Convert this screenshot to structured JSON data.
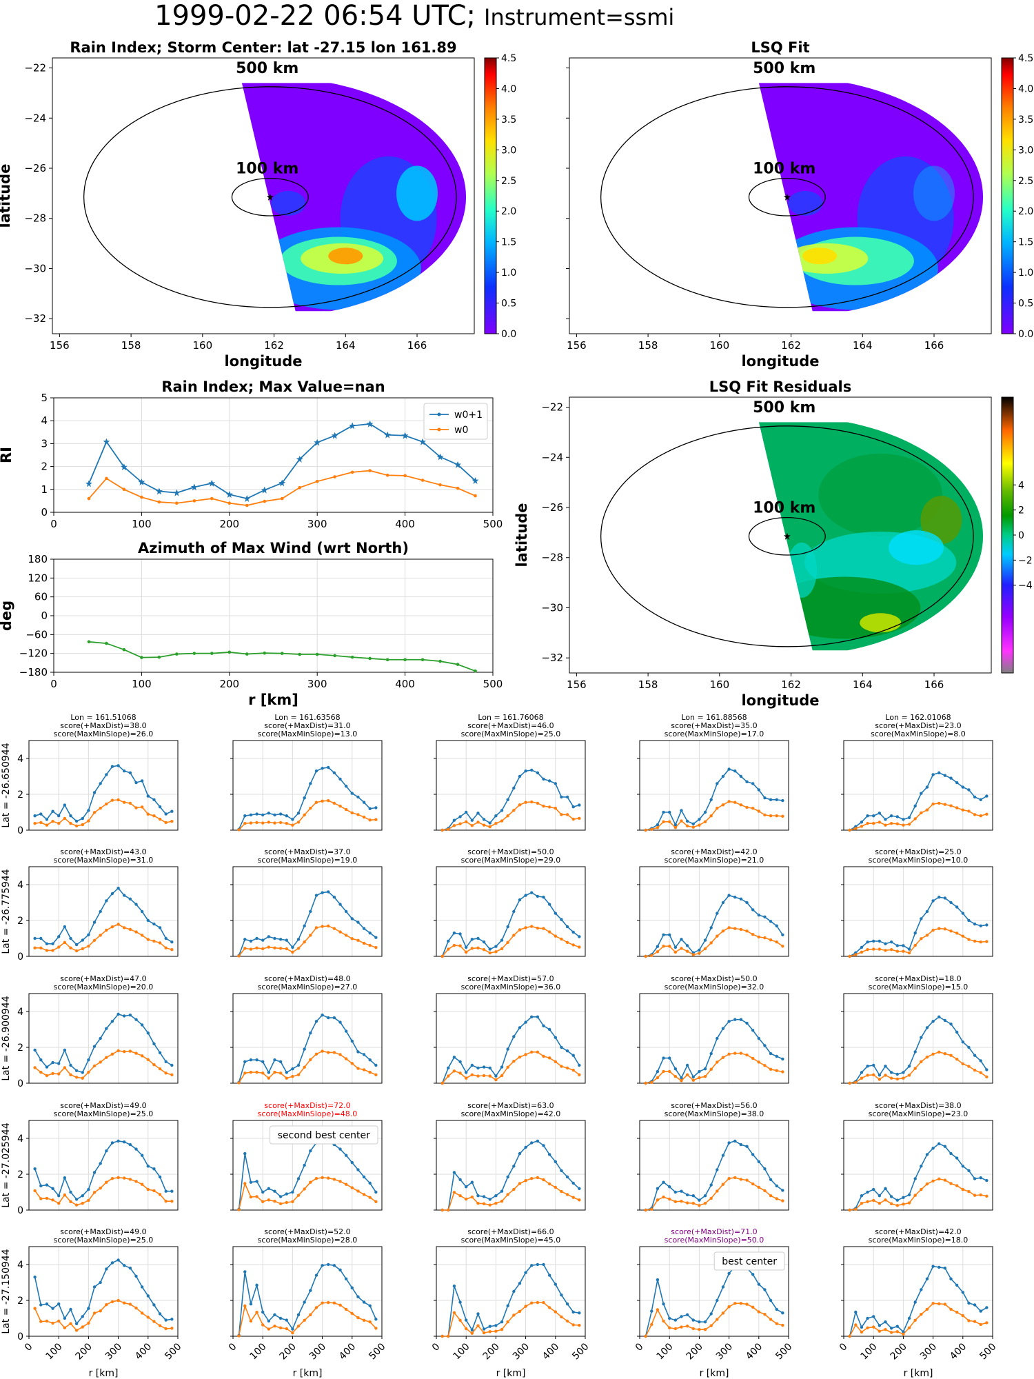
{
  "suptitle": "1999-02-22 06:54 UTC;",
  "suptitle_instrument": "Instrument=ssmi",
  "chart_data": {
    "maps": [
      {
        "id": "rain_index_map",
        "title": "Rain Index; Storm Center: lat -27.15 lon 161.89",
        "xlabel": "longitude",
        "ylabel": "latitude",
        "x_ticks": [
          "156",
          "158",
          "160",
          "162",
          "164",
          "166"
        ],
        "y_ticks": [
          "−22",
          "−24",
          "−26",
          "−28",
          "−30",
          "−32"
        ],
        "colorbar_ticks": [
          "0.0",
          "0.5",
          "1.0",
          "1.5",
          "2.0",
          "2.5",
          "3.0",
          "3.5",
          "4.0",
          "4.5"
        ],
        "ring_labels": [
          "500 km",
          "100 km"
        ],
        "storm_center": {
          "lat": -27.15,
          "lon": 161.89
        }
      },
      {
        "id": "lsq_fit_map",
        "title": "LSQ Fit",
        "xlabel": "longitude",
        "ylabel": "",
        "x_ticks": [
          "156",
          "158",
          "160",
          "162",
          "164",
          "166"
        ],
        "y_ticks": [],
        "colorbar_ticks": [
          "0.0",
          "0.5",
          "1.0",
          "1.5",
          "2.0",
          "2.5",
          "3.0",
          "3.5",
          "4.0",
          "4.5"
        ],
        "ring_labels": [
          "500 km",
          "100 km"
        ]
      },
      {
        "id": "residual_map",
        "title": "LSQ Fit Residuals",
        "xlabel": "longitude",
        "ylabel": "latitude",
        "x_ticks": [
          "156",
          "158",
          "160",
          "162",
          "164",
          "166"
        ],
        "y_ticks": [
          "−22",
          "−24",
          "−26",
          "−28",
          "−30",
          "−32"
        ],
        "colorbar_ticks": [
          "4",
          "2",
          "0",
          "−2",
          "−4"
        ],
        "ring_labels": [
          "500 km",
          "100 km"
        ]
      }
    ],
    "rain_index_profile": {
      "type": "line",
      "title": "Rain Index; Max Value=nan",
      "ylabel": "RI",
      "xlabel": "",
      "x_ticks": [
        "0",
        "100",
        "200",
        "300",
        "400",
        "500"
      ],
      "y_ticks": [
        "0",
        "1",
        "2",
        "3",
        "4",
        "5"
      ],
      "xlim": [
        0,
        500
      ],
      "ylim": [
        0,
        5
      ],
      "legend_position": "top-right",
      "x": [
        40,
        60,
        80,
        100,
        120,
        140,
        160,
        180,
        200,
        220,
        240,
        260,
        280,
        300,
        320,
        340,
        360,
        380,
        400,
        420,
        440,
        460,
        480
      ],
      "series": [
        {
          "name": "w0+1",
          "color": "#1f77b4",
          "values": [
            1.25,
            3.08,
            1.98,
            1.32,
            0.92,
            0.85,
            1.1,
            1.27,
            0.78,
            0.6,
            0.97,
            1.28,
            2.32,
            3.05,
            3.35,
            3.78,
            3.86,
            3.38,
            3.35,
            3.08,
            2.42,
            2.08,
            1.38
          ]
        },
        {
          "name": "w0",
          "color": "#ff7f0e",
          "values": [
            0.6,
            1.48,
            1.0,
            0.66,
            0.45,
            0.4,
            0.5,
            0.6,
            0.4,
            0.3,
            0.48,
            0.6,
            1.08,
            1.35,
            1.55,
            1.75,
            1.82,
            1.62,
            1.6,
            1.4,
            1.2,
            1.05,
            0.72
          ]
        }
      ]
    },
    "azimuth_profile": {
      "type": "line",
      "title": "Azimuth of Max Wind (wrt North)",
      "ylabel": "deg",
      "xlabel": "r [km]",
      "x_ticks": [
        "0",
        "100",
        "200",
        "300",
        "400",
        "500"
      ],
      "y_ticks": [
        "180",
        "120",
        "60",
        "0",
        "−60",
        "−120",
        "−180"
      ],
      "xlim": [
        0,
        500
      ],
      "ylim": [
        -180,
        180
      ],
      "x": [
        40,
        60,
        80,
        100,
        120,
        140,
        160,
        180,
        200,
        220,
        240,
        260,
        280,
        300,
        320,
        340,
        360,
        380,
        400,
        420,
        440,
        460,
        480
      ],
      "series": [
        {
          "name": "",
          "color": "#2ca02c",
          "values": [
            -83,
            -88,
            -108,
            -133,
            -132,
            -122,
            -120,
            -120,
            -116,
            -122,
            -119,
            -120,
            -123,
            -123,
            -127,
            -132,
            -136,
            -140,
            -140,
            -140,
            -145,
            -155,
            -176
          ]
        }
      ]
    },
    "grid_rows": [
      {
        "label": "Lat = -26.650944",
        "cells": [
          {
            "lines": [
              "Lon = 161.51068",
              "score(+MaxDist)=38.0",
              "score(MaxMinSlope)=26.0"
            ]
          },
          {
            "lines": [
              "Lon = 161.63568",
              "score(+MaxDist)=31.0",
              "score(MaxMinSlope)=13.0"
            ]
          },
          {
            "lines": [
              "Lon = 161.76068",
              "score(+MaxDist)=46.0",
              "score(MaxMinSlope)=25.0"
            ]
          },
          {
            "lines": [
              "Lon = 161.88568",
              "score(+MaxDist)=35.0",
              "score(MaxMinSlope)=17.0"
            ]
          },
          {
            "lines": [
              "Lon = 162.01068",
              "score(+MaxDist)=23.0",
              "score(MaxMinSlope)=8.0"
            ]
          }
        ]
      },
      {
        "label": "Lat = -26.775944",
        "cells": [
          {
            "lines": [
              "score(+MaxDist)=43.0",
              "score(MaxMinSlope)=31.0"
            ]
          },
          {
            "lines": [
              "score(+MaxDist)=37.0",
              "score(MaxMinSlope)=19.0"
            ]
          },
          {
            "lines": [
              "score(+MaxDist)=50.0",
              "score(MaxMinSlope)=29.0"
            ]
          },
          {
            "lines": [
              "score(+MaxDist)=42.0",
              "score(MaxMinSlope)=21.0"
            ]
          },
          {
            "lines": [
              "score(+MaxDist)=25.0",
              "score(MaxMinSlope)=10.0"
            ]
          }
        ]
      },
      {
        "label": "Lat = -26.900944",
        "cells": [
          {
            "lines": [
              "score(+MaxDist)=47.0",
              "score(MaxMinSlope)=20.0"
            ]
          },
          {
            "lines": [
              "score(+MaxDist)=48.0",
              "score(MaxMinSlope)=27.0"
            ]
          },
          {
            "lines": [
              "score(+MaxDist)=57.0",
              "score(MaxMinSlope)=36.0"
            ]
          },
          {
            "lines": [
              "score(+MaxDist)=50.0",
              "score(MaxMinSlope)=32.0"
            ]
          },
          {
            "lines": [
              "score(+MaxDist)=18.0",
              "score(MaxMinSlope)=15.0"
            ]
          }
        ]
      },
      {
        "label": "Lat = -27.025944",
        "cells": [
          {
            "lines": [
              "score(+MaxDist)=49.0",
              "score(MaxMinSlope)=25.0"
            ]
          },
          {
            "lines": [
              "score(+MaxDist)=72.0",
              "score(MaxMinSlope)=48.0"
            ],
            "title_color": "#ff0000",
            "annotation": "second best center"
          },
          {
            "lines": [
              "score(+MaxDist)=63.0",
              "score(MaxMinSlope)=42.0"
            ]
          },
          {
            "lines": [
              "score(+MaxDist)=56.0",
              "score(MaxMinSlope)=38.0"
            ]
          },
          {
            "lines": [
              "score(+MaxDist)=38.0",
              "score(MaxMinSlope)=23.0"
            ]
          }
        ]
      },
      {
        "label": "Lat = -27.150944",
        "cells": [
          {
            "lines": [
              "score(+MaxDist)=49.0",
              "score(MaxMinSlope)=25.0"
            ]
          },
          {
            "lines": [
              "score(+MaxDist)=52.0",
              "score(MaxMinSlope)=28.0"
            ]
          },
          {
            "lines": [
              "score(+MaxDist)=66.0",
              "score(MaxMinSlope)=45.0"
            ]
          },
          {
            "lines": [
              "score(+MaxDist)=71.0",
              "score(MaxMinSlope)=50.0"
            ],
            "title_color": "#800080",
            "annotation": "best center"
          },
          {
            "lines": [
              "score(+MaxDist)=42.0",
              "score(MaxMinSlope)=18.0"
            ]
          }
        ]
      }
    ],
    "grid_axes": {
      "xlabel": "r [km]",
      "x_ticks": [
        "0",
        "100",
        "200",
        "300",
        "400",
        "500"
      ],
      "y_ticks": [
        "0",
        "2",
        "4"
      ],
      "xlim": [
        0,
        500
      ],
      "ylim": [
        0,
        5
      ]
    },
    "small_profiles": [
      [
        [
          0.8,
          0.9,
          0.6,
          1.05,
          0.8,
          1.4,
          0.8,
          0.5,
          0.65,
          1.1,
          2.1,
          2.6,
          3.1,
          3.55,
          3.6,
          3.3,
          3.2,
          2.65,
          2.75,
          1.9,
          1.7,
          1.3,
          0.9,
          1.05
        ],
        [
          0.05,
          0.8,
          0.85,
          0.9,
          0.85,
          0.95,
          0.85,
          0.9,
          0.8,
          0.6,
          0.95,
          1.8,
          2.6,
          3.3,
          3.45,
          3.5,
          3.2,
          2.85,
          2.45,
          2.05,
          1.85,
          1.55,
          1.2,
          1.25
        ],
        [
          0.0,
          0.1,
          0.55,
          0.75,
          1.0,
          0.55,
          0.95,
          0.6,
          0.4,
          0.8,
          1.1,
          1.7,
          2.35,
          3.0,
          3.3,
          3.35,
          3.2,
          2.85,
          2.75,
          2.6,
          1.85,
          1.85,
          1.3,
          1.4
        ],
        [
          0.0,
          0.1,
          0.3,
          1.0,
          1.0,
          0.3,
          1.1,
          0.5,
          0.35,
          0.6,
          1.0,
          1.7,
          2.6,
          3.0,
          3.4,
          3.3,
          3.0,
          2.7,
          2.6,
          2.25,
          1.8,
          1.7,
          1.7,
          1.65
        ],
        [
          0.0,
          0.2,
          0.45,
          0.8,
          0.8,
          0.95,
          0.6,
          0.8,
          0.75,
          0.6,
          0.7,
          1.35,
          2.05,
          2.4,
          3.1,
          3.2,
          3.05,
          2.9,
          2.65,
          2.4,
          2.25,
          1.85,
          1.7,
          1.9
        ]
      ],
      [
        [
          1.0,
          1.0,
          0.7,
          0.7,
          1.1,
          1.65,
          1.0,
          0.65,
          0.9,
          1.2,
          1.9,
          2.5,
          3.1,
          3.5,
          3.8,
          3.4,
          3.2,
          2.9,
          2.5,
          2.0,
          1.8,
          1.6,
          1.0,
          0.8
        ],
        [
          0.05,
          0.95,
          0.85,
          1.0,
          0.9,
          1.1,
          1.0,
          0.95,
          0.9,
          0.5,
          0.95,
          1.7,
          2.5,
          3.4,
          3.55,
          3.6,
          3.3,
          2.9,
          2.5,
          2.1,
          1.9,
          1.55,
          1.3,
          1.05
        ],
        [
          0.0,
          0.85,
          1.3,
          1.25,
          0.5,
          0.95,
          1.0,
          0.8,
          0.4,
          0.55,
          0.9,
          1.65,
          2.5,
          3.15,
          3.4,
          3.55,
          3.35,
          3.3,
          2.9,
          2.4,
          2.05,
          1.65,
          1.35,
          1.1
        ],
        [
          0.0,
          0.1,
          0.55,
          1.2,
          1.2,
          0.5,
          0.95,
          0.6,
          0.2,
          0.35,
          0.9,
          1.6,
          2.4,
          3.0,
          3.4,
          3.3,
          3.2,
          3.0,
          2.6,
          2.3,
          2.2,
          1.95,
          1.7,
          1.2
        ],
        [
          0.0,
          0.2,
          0.5,
          0.8,
          0.85,
          0.85,
          0.7,
          0.8,
          0.6,
          0.6,
          0.4,
          1.3,
          2.1,
          2.5,
          3.1,
          3.3,
          3.25,
          3.0,
          2.75,
          2.4,
          2.0,
          1.8,
          1.7,
          1.75
        ]
      ],
      [
        [
          1.85,
          1.3,
          0.9,
          1.15,
          1.1,
          1.85,
          1.0,
          0.7,
          0.6,
          1.3,
          2.05,
          2.5,
          3.05,
          3.45,
          3.85,
          3.75,
          3.8,
          3.55,
          3.25,
          2.8,
          2.2,
          1.7,
          1.2,
          1.0
        ],
        [
          0.05,
          1.2,
          1.3,
          1.3,
          1.2,
          0.6,
          1.3,
          1.2,
          0.6,
          0.8,
          1.0,
          1.9,
          2.8,
          3.45,
          3.8,
          3.65,
          3.65,
          3.4,
          2.9,
          2.35,
          1.75,
          1.6,
          1.3,
          1.0
        ],
        [
          0.0,
          0.85,
          1.45,
          1.2,
          0.6,
          1.0,
          0.85,
          0.9,
          0.85,
          0.4,
          0.9,
          1.9,
          2.6,
          3.1,
          3.4,
          3.7,
          3.7,
          3.2,
          3.0,
          2.55,
          2.0,
          1.8,
          1.55,
          1.0
        ],
        [
          0.0,
          0.1,
          0.65,
          1.4,
          1.4,
          0.8,
          0.3,
          1.0,
          0.35,
          0.65,
          0.8,
          1.65,
          2.5,
          3.05,
          3.45,
          3.55,
          3.55,
          3.35,
          2.95,
          2.5,
          2.1,
          1.65,
          1.5,
          1.35
        ],
        [
          0.0,
          0.1,
          0.6,
          0.95,
          1.0,
          0.45,
          0.95,
          0.6,
          0.5,
          0.6,
          0.95,
          1.75,
          2.55,
          3.1,
          3.45,
          3.7,
          3.5,
          3.3,
          2.85,
          2.3,
          2.0,
          1.55,
          1.25,
          0.75
        ]
      ],
      [
        [
          2.3,
          1.35,
          1.4,
          1.2,
          0.8,
          1.8,
          1.0,
          0.6,
          0.8,
          1.15,
          2.1,
          2.6,
          3.3,
          3.75,
          3.85,
          3.8,
          3.65,
          3.4,
          3.05,
          2.45,
          2.3,
          1.85,
          1.05,
          1.05
        ],
        [
          0.05,
          3.15,
          1.55,
          1.6,
          1.0,
          1.2,
          1.05,
          0.75,
          0.9,
          1.0,
          1.75,
          2.5,
          3.3,
          3.75,
          3.85,
          3.8,
          3.65,
          3.4,
          3.05,
          2.65,
          2.25,
          1.85,
          1.5,
          1.0
        ],
        [
          0.0,
          0.0,
          2.1,
          1.7,
          1.3,
          1.55,
          0.8,
          0.75,
          0.6,
          0.8,
          1.05,
          1.85,
          2.45,
          3.15,
          3.5,
          3.75,
          3.85,
          3.6,
          3.1,
          2.7,
          2.2,
          1.85,
          1.5,
          1.2
        ],
        [
          0.0,
          0.1,
          1.2,
          1.55,
          1.3,
          1.0,
          1.05,
          0.85,
          0.8,
          0.55,
          0.8,
          1.4,
          2.25,
          3.05,
          3.75,
          3.85,
          3.65,
          3.55,
          3.1,
          2.7,
          2.3,
          1.7,
          1.35,
          1.1
        ],
        [
          0.0,
          0.1,
          0.8,
          1.0,
          1.15,
          0.8,
          1.2,
          0.75,
          0.55,
          0.7,
          0.85,
          1.75,
          2.45,
          3.1,
          3.45,
          3.7,
          3.55,
          3.15,
          2.9,
          2.45,
          2.2,
          1.75,
          1.8,
          1.65
        ]
      ],
      [
        [
          3.3,
          1.75,
          1.8,
          1.55,
          1.8,
          1.0,
          1.5,
          0.7,
          1.1,
          1.55,
          2.75,
          3.0,
          3.75,
          4.1,
          4.25,
          3.95,
          3.8,
          3.35,
          2.75,
          2.25,
          1.75,
          1.25,
          0.9,
          0.95
        ],
        [
          0.05,
          3.6,
          1.8,
          2.85,
          1.35,
          0.85,
          1.2,
          1.0,
          0.9,
          0.4,
          1.2,
          1.9,
          2.55,
          3.4,
          3.95,
          4.0,
          3.95,
          3.7,
          3.2,
          2.7,
          2.2,
          1.9,
          1.7,
          0.95
        ],
        [
          0.0,
          0.0,
          2.8,
          1.9,
          0.9,
          0.35,
          1.25,
          0.4,
          0.55,
          0.6,
          0.8,
          1.7,
          2.5,
          2.95,
          3.55,
          3.95,
          4.0,
          4.0,
          3.4,
          2.9,
          2.3,
          1.8,
          1.35,
          1.3
        ],
        [
          0.0,
          1.4,
          3.15,
          1.8,
          1.0,
          0.9,
          1.1,
          1.2,
          0.9,
          0.8,
          0.8,
          1.25,
          2.0,
          2.75,
          3.5,
          3.9,
          3.9,
          3.8,
          3.45,
          2.9,
          2.6,
          2.0,
          1.5,
          1.3
        ],
        [
          0.0,
          1.35,
          0.5,
          1.0,
          1.1,
          0.6,
          0.8,
          0.45,
          0.55,
          0.25,
          1.0,
          1.9,
          2.6,
          3.2,
          3.9,
          3.85,
          3.8,
          3.2,
          2.85,
          2.45,
          1.85,
          1.75,
          1.4,
          1.6
        ]
      ]
    ]
  }
}
